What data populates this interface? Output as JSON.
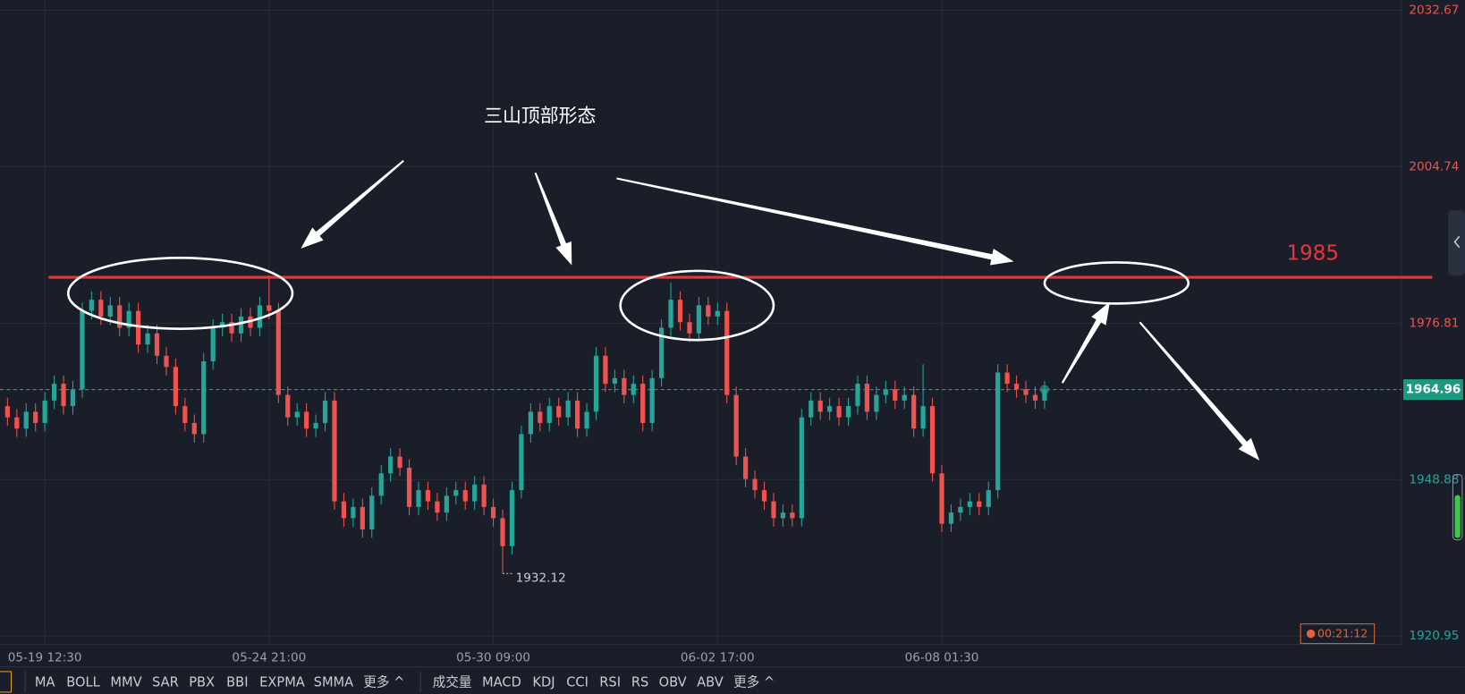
{
  "chart_data": {
    "type": "candlestick",
    "ylim": [
      1920.95,
      2032.67
    ],
    "yticks": [
      1920.95,
      1948.88,
      1976.81,
      2004.74,
      2032.67
    ],
    "xticks": [
      {
        "value": 4,
        "label": "05-19 12:30"
      },
      {
        "value": 28,
        "label": "05-24 21:00"
      },
      {
        "value": 52,
        "label": "05-30 09:00"
      },
      {
        "value": 76,
        "label": "06-02 17:00"
      },
      {
        "value": 100,
        "label": "06-08 01:30"
      }
    ],
    "up_color": "#26a69a",
    "down_color": "#ef5350",
    "grid": true,
    "ohlc": [
      [
        1962,
        1963.5,
        1958.5,
        1960
      ],
      [
        1960,
        1961.5,
        1956.5,
        1958
      ],
      [
        1958,
        1962.5,
        1956.5,
        1961
      ],
      [
        1961,
        1962.5,
        1957.5,
        1959
      ],
      [
        1959,
        1964.5,
        1957.5,
        1963
      ],
      [
        1963,
        1967.5,
        1961.5,
        1966
      ],
      [
        1966,
        1967.5,
        1960.5,
        1962
      ],
      [
        1962,
        1966.5,
        1960.5,
        1965
      ],
      [
        1965,
        1980.5,
        1963.5,
        1979
      ],
      [
        1979,
        1982.5,
        1977.5,
        1981
      ],
      [
        1981,
        1982.5,
        1976.5,
        1978
      ],
      [
        1978,
        1981.5,
        1976.5,
        1980
      ],
      [
        1980,
        1981.5,
        1974.5,
        1976
      ],
      [
        1976,
        1980.5,
        1974.5,
        1979
      ],
      [
        1979,
        1980.5,
        1971.5,
        1973
      ],
      [
        1973,
        1976.5,
        1971.5,
        1975
      ],
      [
        1975,
        1976.5,
        1969.5,
        1971
      ],
      [
        1971,
        1972.5,
        1967.5,
        1969
      ],
      [
        1969,
        1970.5,
        1960.5,
        1962
      ],
      [
        1962,
        1963.5,
        1957.5,
        1959
      ],
      [
        1959,
        1960.5,
        1955.5,
        1957
      ],
      [
        1957,
        1971.5,
        1955.5,
        1970
      ],
      [
        1970,
        1977.5,
        1968.5,
        1976
      ],
      [
        1976,
        1978.5,
        1974.5,
        1977
      ],
      [
        1977,
        1978.5,
        1973.5,
        1975
      ],
      [
        1975,
        1979.5,
        1973.5,
        1978
      ],
      [
        1978,
        1979.5,
        1974.5,
        1976
      ],
      [
        1976,
        1981.5,
        1974.5,
        1980
      ],
      [
        1980,
        1985.3,
        1977.5,
        1979
      ],
      [
        1979,
        1980.5,
        1962.5,
        1964
      ],
      [
        1964,
        1965.5,
        1958.5,
        1960
      ],
      [
        1960,
        1962.5,
        1958.5,
        1961
      ],
      [
        1961,
        1962.5,
        1956.5,
        1958
      ],
      [
        1958,
        1960.5,
        1956.5,
        1959
      ],
      [
        1959,
        1964.5,
        1957.5,
        1963
      ],
      [
        1963,
        1964.5,
        1943.5,
        1945
      ],
      [
        1945,
        1946.5,
        1940.5,
        1942
      ],
      [
        1942,
        1945.5,
        1940.5,
        1944
      ],
      [
        1944,
        1945.5,
        1938.5,
        1940
      ],
      [
        1940,
        1947.5,
        1938.5,
        1946
      ],
      [
        1946,
        1951.5,
        1944.5,
        1950
      ],
      [
        1950,
        1954.5,
        1948.5,
        1953
      ],
      [
        1953,
        1954.5,
        1949.5,
        1951
      ],
      [
        1951,
        1952.5,
        1942.5,
        1944
      ],
      [
        1944,
        1948.5,
        1942.5,
        1947
      ],
      [
        1947,
        1948.5,
        1943.5,
        1945
      ],
      [
        1945,
        1946.5,
        1941.5,
        1943
      ],
      [
        1943,
        1947.5,
        1941.5,
        1946
      ],
      [
        1946,
        1948.5,
        1944.5,
        1947
      ],
      [
        1947,
        1948.5,
        1943.5,
        1945
      ],
      [
        1945,
        1949.5,
        1943.5,
        1948
      ],
      [
        1948,
        1949.5,
        1942.5,
        1944
      ],
      [
        1944,
        1945.5,
        1940.5,
        1942
      ],
      [
        1942,
        1943.5,
        1932.12,
        1937
      ],
      [
        1937,
        1948.5,
        1935.5,
        1947
      ],
      [
        1947,
        1958.5,
        1945.5,
        1957
      ],
      [
        1957,
        1962.5,
        1955.5,
        1961
      ],
      [
        1961,
        1962.5,
        1957.5,
        1959
      ],
      [
        1959,
        1963.5,
        1957.5,
        1962
      ],
      [
        1962,
        1963.5,
        1958.5,
        1960
      ],
      [
        1960,
        1964.5,
        1958.5,
        1963
      ],
      [
        1963,
        1964.5,
        1956.5,
        1958
      ],
      [
        1958,
        1962.5,
        1956.5,
        1961
      ],
      [
        1961,
        1972.5,
        1959.5,
        1971
      ],
      [
        1971,
        1972.5,
        1964.5,
        1966
      ],
      [
        1966,
        1968.5,
        1964.5,
        1967
      ],
      [
        1967,
        1968.5,
        1962.5,
        1964
      ],
      [
        1964,
        1967.5,
        1962.5,
        1966
      ],
      [
        1966,
        1967.5,
        1957.5,
        1959
      ],
      [
        1959,
        1968.5,
        1957.5,
        1967
      ],
      [
        1967,
        1977.5,
        1965.5,
        1976
      ],
      [
        1976,
        1984,
        1974.5,
        1981
      ],
      [
        1981,
        1982.5,
        1975.5,
        1977
      ],
      [
        1977,
        1978.5,
        1973.5,
        1975
      ],
      [
        1975,
        1981.5,
        1973.5,
        1980
      ],
      [
        1980,
        1981.5,
        1976.5,
        1978
      ],
      [
        1978,
        1980.5,
        1976.5,
        1979
      ],
      [
        1979,
        1980.5,
        1962.5,
        1964
      ],
      [
        1964,
        1965.5,
        1951.5,
        1953
      ],
      [
        1953,
        1954.5,
        1947.5,
        1949
      ],
      [
        1949,
        1950.5,
        1945.5,
        1947
      ],
      [
        1947,
        1948.5,
        1943.5,
        1945
      ],
      [
        1945,
        1946.5,
        1940.5,
        1942
      ],
      [
        1942,
        1944.5,
        1940.5,
        1943
      ],
      [
        1943,
        1944.5,
        1940.5,
        1942
      ],
      [
        1942,
        1961.5,
        1940.5,
        1960
      ],
      [
        1960,
        1964.5,
        1958.5,
        1963
      ],
      [
        1963,
        1964.5,
        1959.5,
        1961
      ],
      [
        1961,
        1963.5,
        1959.5,
        1962
      ],
      [
        1962,
        1963.5,
        1958.5,
        1960
      ],
      [
        1960,
        1963.5,
        1958.5,
        1962
      ],
      [
        1962,
        1967.5,
        1960.5,
        1966
      ],
      [
        1966,
        1967.5,
        1959.5,
        1961
      ],
      [
        1961,
        1965.5,
        1959.5,
        1964
      ],
      [
        1964,
        1966.5,
        1962.5,
        1965
      ],
      [
        1965,
        1966.5,
        1961.5,
        1963
      ],
      [
        1963,
        1965.5,
        1961.5,
        1964
      ],
      [
        1964,
        1965.5,
        1956.5,
        1958
      ],
      [
        1958,
        1969.5,
        1956.5,
        1962
      ],
      [
        1962,
        1963.5,
        1948.5,
        1950
      ],
      [
        1950,
        1951.5,
        1939.5,
        1941
      ],
      [
        1941,
        1944.5,
        1939.5,
        1943
      ],
      [
        1943,
        1945.5,
        1941.5,
        1944
      ],
      [
        1944,
        1946.5,
        1942.5,
        1945
      ],
      [
        1945,
        1946.5,
        1942.5,
        1944
      ],
      [
        1944,
        1948.5,
        1942.5,
        1947
      ],
      [
        1947,
        1969.5,
        1945.5,
        1968
      ],
      [
        1968,
        1969.5,
        1964.5,
        1966
      ],
      [
        1966,
        1967.5,
        1963.5,
        1965
      ],
      [
        1965,
        1966.5,
        1962.5,
        1964
      ],
      [
        1964,
        1965.5,
        1961.5,
        1963
      ],
      [
        1963,
        1966.5,
        1961.5,
        1964.96
      ]
    ],
    "hline": {
      "value": 1985,
      "color": "#e8353b"
    },
    "annotation": "三山顶部形态",
    "countdown": "00:21:12"
  },
  "toolbar": {
    "main": [
      "MA",
      "BOLL",
      "MMV",
      "SAR",
      "PBX",
      "BBI",
      "EXPMA",
      "SMMA",
      "更多 ^"
    ],
    "sub": [
      "成交量",
      "MACD",
      "KDJ",
      "CCI",
      "RSI",
      "RS",
      "OBV",
      "ABV",
      "更多 ^"
    ]
  }
}
